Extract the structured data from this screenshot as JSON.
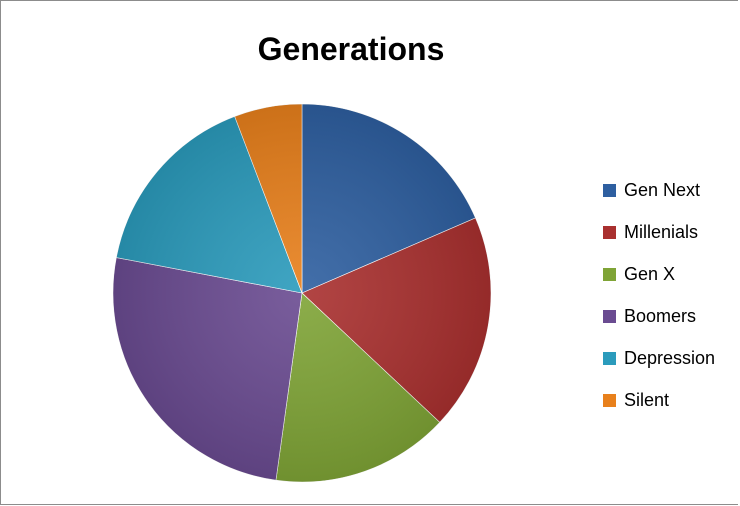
{
  "chart_data": {
    "type": "pie",
    "title": "Generations",
    "legend_position": "right",
    "series": [
      {
        "name": "Gen Next",
        "value": 18.5,
        "color": "#2e5fa0"
      },
      {
        "name": "Millenials",
        "value": 18.5,
        "color": "#a9302f"
      },
      {
        "name": "Gen X",
        "value": 15.2,
        "color": "#7fa436"
      },
      {
        "name": "Boomers",
        "value": 25.8,
        "color": "#6a4b91"
      },
      {
        "name": "Depression",
        "value": 16.2,
        "color": "#2b9bbc"
      },
      {
        "name": "Silent",
        "value": 5.8,
        "color": "#e8801c"
      }
    ]
  }
}
